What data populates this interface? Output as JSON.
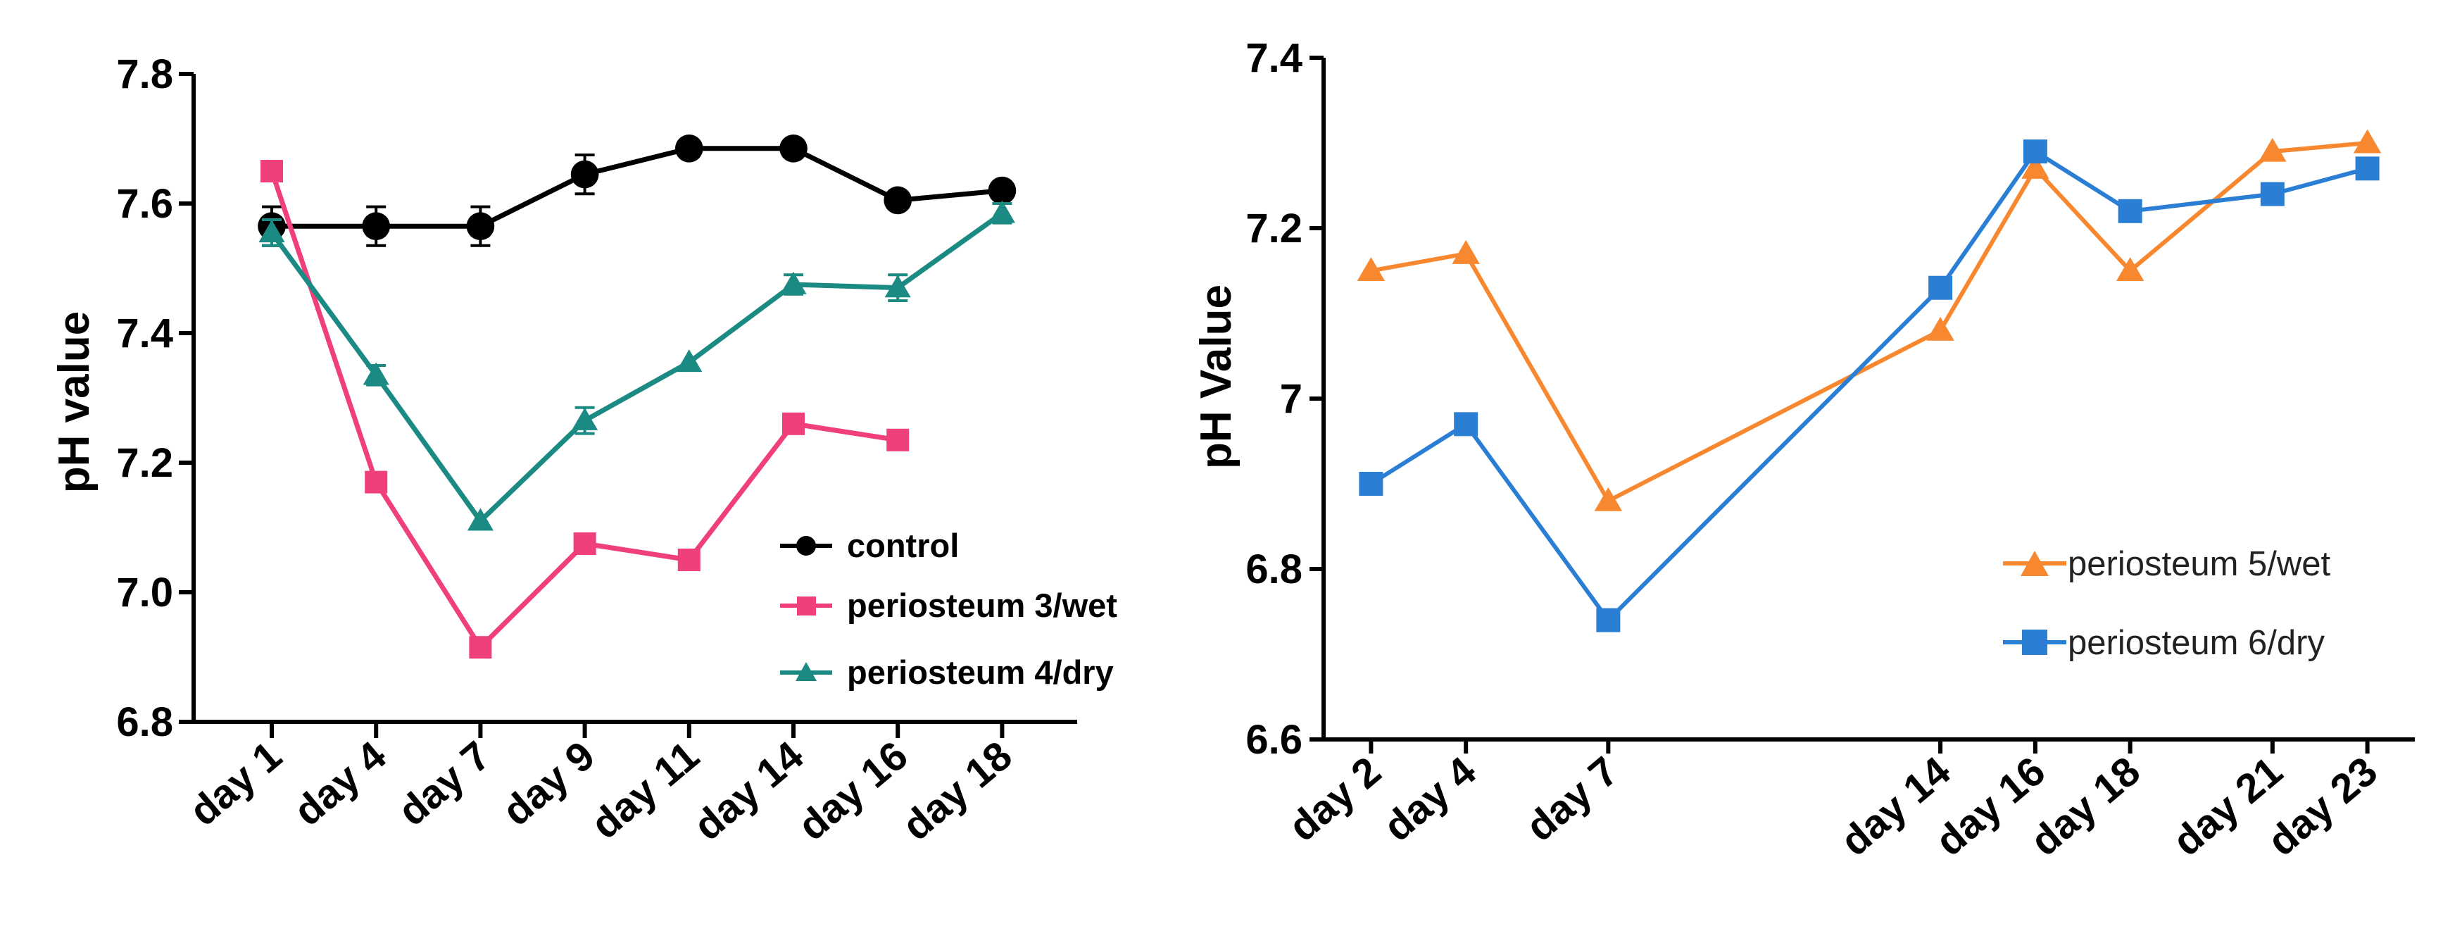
{
  "chart_data": [
    {
      "type": "line",
      "title": "",
      "xlabel": "",
      "ylabel": "pH value",
      "ylim": [
        6.8,
        7.8
      ],
      "yticks": [
        "6.8",
        "7.0",
        "7.2",
        "7.4",
        "7.6",
        "7.8"
      ],
      "categories": [
        "day 1",
        "day 4",
        "day 7",
        "day 9",
        "day 11",
        "day 14",
        "day 16",
        "day 18"
      ],
      "legend_position": "lower-right",
      "series": [
        {
          "name": "control",
          "color": "#000000",
          "marker": "circle",
          "values": [
            7.565,
            7.565,
            7.565,
            7.645,
            7.685,
            7.685,
            7.605,
            7.62
          ],
          "errors": [
            0.03,
            0.03,
            0.03,
            0.03,
            0.0,
            0.0,
            0.0,
            0.0
          ]
        },
        {
          "name": "periosteum 3/wet",
          "color": "#f0407a",
          "marker": "square",
          "values": [
            7.65,
            7.17,
            6.915,
            7.075,
            7.05,
            7.26,
            7.235,
            null
          ],
          "errors": [
            0,
            0,
            0,
            0,
            0,
            0,
            0,
            0
          ]
        },
        {
          "name": "periosteum 4/dry",
          "color": "#1a8a82",
          "marker": "triangle",
          "values": [
            7.555,
            7.335,
            7.11,
            7.265,
            7.355,
            7.475,
            7.47,
            7.585
          ],
          "errors": [
            0.02,
            0.015,
            0.0,
            0.02,
            0.0,
            0.015,
            0.02,
            0.015
          ]
        }
      ]
    },
    {
      "type": "line",
      "title": "",
      "xlabel": "",
      "ylabel": "pH Value",
      "ylim": [
        6.6,
        7.4
      ],
      "yticks": [
        "6.6",
        "6.8",
        "7",
        "7.2",
        "7.4"
      ],
      "x_day_range": [
        1,
        24
      ],
      "categories": [
        "day 2",
        "day 4",
        "day 7",
        "day 14",
        "day 16",
        "day 18",
        "day 21",
        "day 23"
      ],
      "x_days": [
        2,
        4,
        7,
        14,
        16,
        18,
        21,
        23
      ],
      "legend_position": "lower-right",
      "series": [
        {
          "name": "periosteum 5/wet",
          "color": "#f7882f",
          "marker": "triangle",
          "values": [
            7.15,
            7.17,
            6.88,
            7.08,
            7.27,
            7.15,
            7.29,
            7.3
          ]
        },
        {
          "name": "periosteum 6/dry",
          "color": "#2a7fd4",
          "marker": "square",
          "values": [
            6.9,
            6.97,
            6.74,
            7.13,
            7.29,
            7.22,
            7.24,
            7.27
          ]
        }
      ]
    }
  ]
}
